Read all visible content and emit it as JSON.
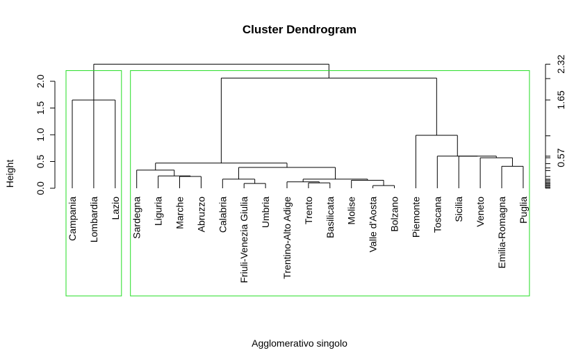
{
  "chart_data": {
    "type": "dendrogram",
    "title": "Cluster Dendrogram",
    "xlabel": "Agglomerativo singolo",
    "ylabel": "Height",
    "ylim": [
      0,
      2.4
    ],
    "left_ticks": [
      "0.0",
      "0.5",
      "1.0",
      "1.5",
      "2.0"
    ],
    "left_tick_values": [
      0.0,
      0.5,
      1.0,
      1.5,
      2.0
    ],
    "right_ticks": [
      {
        "value": 0.0,
        "label": ""
      },
      {
        "value": 0.02,
        "label": ""
      },
      {
        "value": 0.04,
        "label": ""
      },
      {
        "value": 0.06,
        "label": ""
      },
      {
        "value": 0.08,
        "label": ""
      },
      {
        "value": 0.1,
        "label": ""
      },
      {
        "value": 0.12,
        "label": ""
      },
      {
        "value": 0.15,
        "label": ""
      },
      {
        "value": 0.17,
        "label": ""
      },
      {
        "value": 0.22,
        "label": ""
      },
      {
        "value": 0.33,
        "label": ""
      },
      {
        "value": 0.38,
        "label": ""
      },
      {
        "value": 0.46,
        "label": ""
      },
      {
        "value": 0.57,
        "label": "0.57"
      },
      {
        "value": 0.6,
        "label": ""
      },
      {
        "value": 0.98,
        "label": ""
      },
      {
        "value": 1.65,
        "label": "1.65"
      },
      {
        "value": 2.05,
        "label": ""
      },
      {
        "value": 2.32,
        "label": "2.32"
      }
    ],
    "leaves": [
      "Campania",
      "Lombardia",
      "Lazio",
      "Sardegna",
      "Liguria",
      "Marche",
      "Abruzzo",
      "Calabria",
      "Friuli-Venezia Giulia",
      "Umbria",
      "Trentino-Alto Adige",
      "Trento",
      "Basilicata",
      "Molise",
      "Valle d'Aosta",
      "Bolzano",
      "Piemonte",
      "Toscana",
      "Sicilia",
      "Veneto",
      "Emilia-Romagna",
      "Puglia"
    ],
    "merges": [
      {
        "children": [
          "L:Marche",
          "L:Abruzzo"
        ],
        "height": 0.22
      },
      {
        "children": [
          "L:Liguria",
          "M:0"
        ],
        "height": 0.23
      },
      {
        "children": [
          "L:Sardegna",
          "M:1"
        ],
        "height": 0.34
      },
      {
        "children": [
          "L:Friuli-Venezia Giulia",
          "L:Umbria"
        ],
        "height": 0.09
      },
      {
        "children": [
          "L:Calabria",
          "M:3"
        ],
        "height": 0.17
      },
      {
        "children": [
          "L:Trento",
          "L:Basilicata"
        ],
        "height": 0.1
      },
      {
        "children": [
          "L:Trentino-Alto Adige",
          "M:5"
        ],
        "height": 0.12
      },
      {
        "children": [
          "L:Valle d'Aosta",
          "L:Bolzano"
        ],
        "height": 0.05
      },
      {
        "children": [
          "L:Molise",
          "M:7"
        ],
        "height": 0.15
      },
      {
        "children": [
          "M:6",
          "M:8"
        ],
        "height": 0.17
      },
      {
        "children": [
          "M:4",
          "M:9"
        ],
        "height": 0.39
      },
      {
        "children": [
          "M:2",
          "M:10"
        ],
        "height": 0.47
      },
      {
        "children": [
          "L:Emilia-Romagna",
          "L:Puglia"
        ],
        "height": 0.41
      },
      {
        "children": [
          "L:Veneto",
          "M:12"
        ],
        "height": 0.57
      },
      {
        "children": [
          "L:Sicilia",
          "M:13"
        ],
        "height": 0.6
      },
      {
        "children": [
          "L:Toscana",
          "M:14"
        ],
        "height": 0.6
      },
      {
        "children": [
          "L:Piemonte",
          "M:15"
        ],
        "height": 0.99
      },
      {
        "children": [
          "M:11",
          "M:16"
        ],
        "height": 2.06
      },
      {
        "children": [
          "L:Campania",
          "L:Lombardia",
          "L:Lazio"
        ],
        "height": 1.65
      },
      {
        "children": [
          "M:18",
          "M:17"
        ],
        "height": 2.32
      }
    ],
    "clusters": [
      {
        "first_leaf": 0,
        "last_leaf": 2,
        "color": "#22dd22"
      },
      {
        "first_leaf": 3,
        "last_leaf": 21,
        "color": "#22dd22"
      }
    ]
  }
}
